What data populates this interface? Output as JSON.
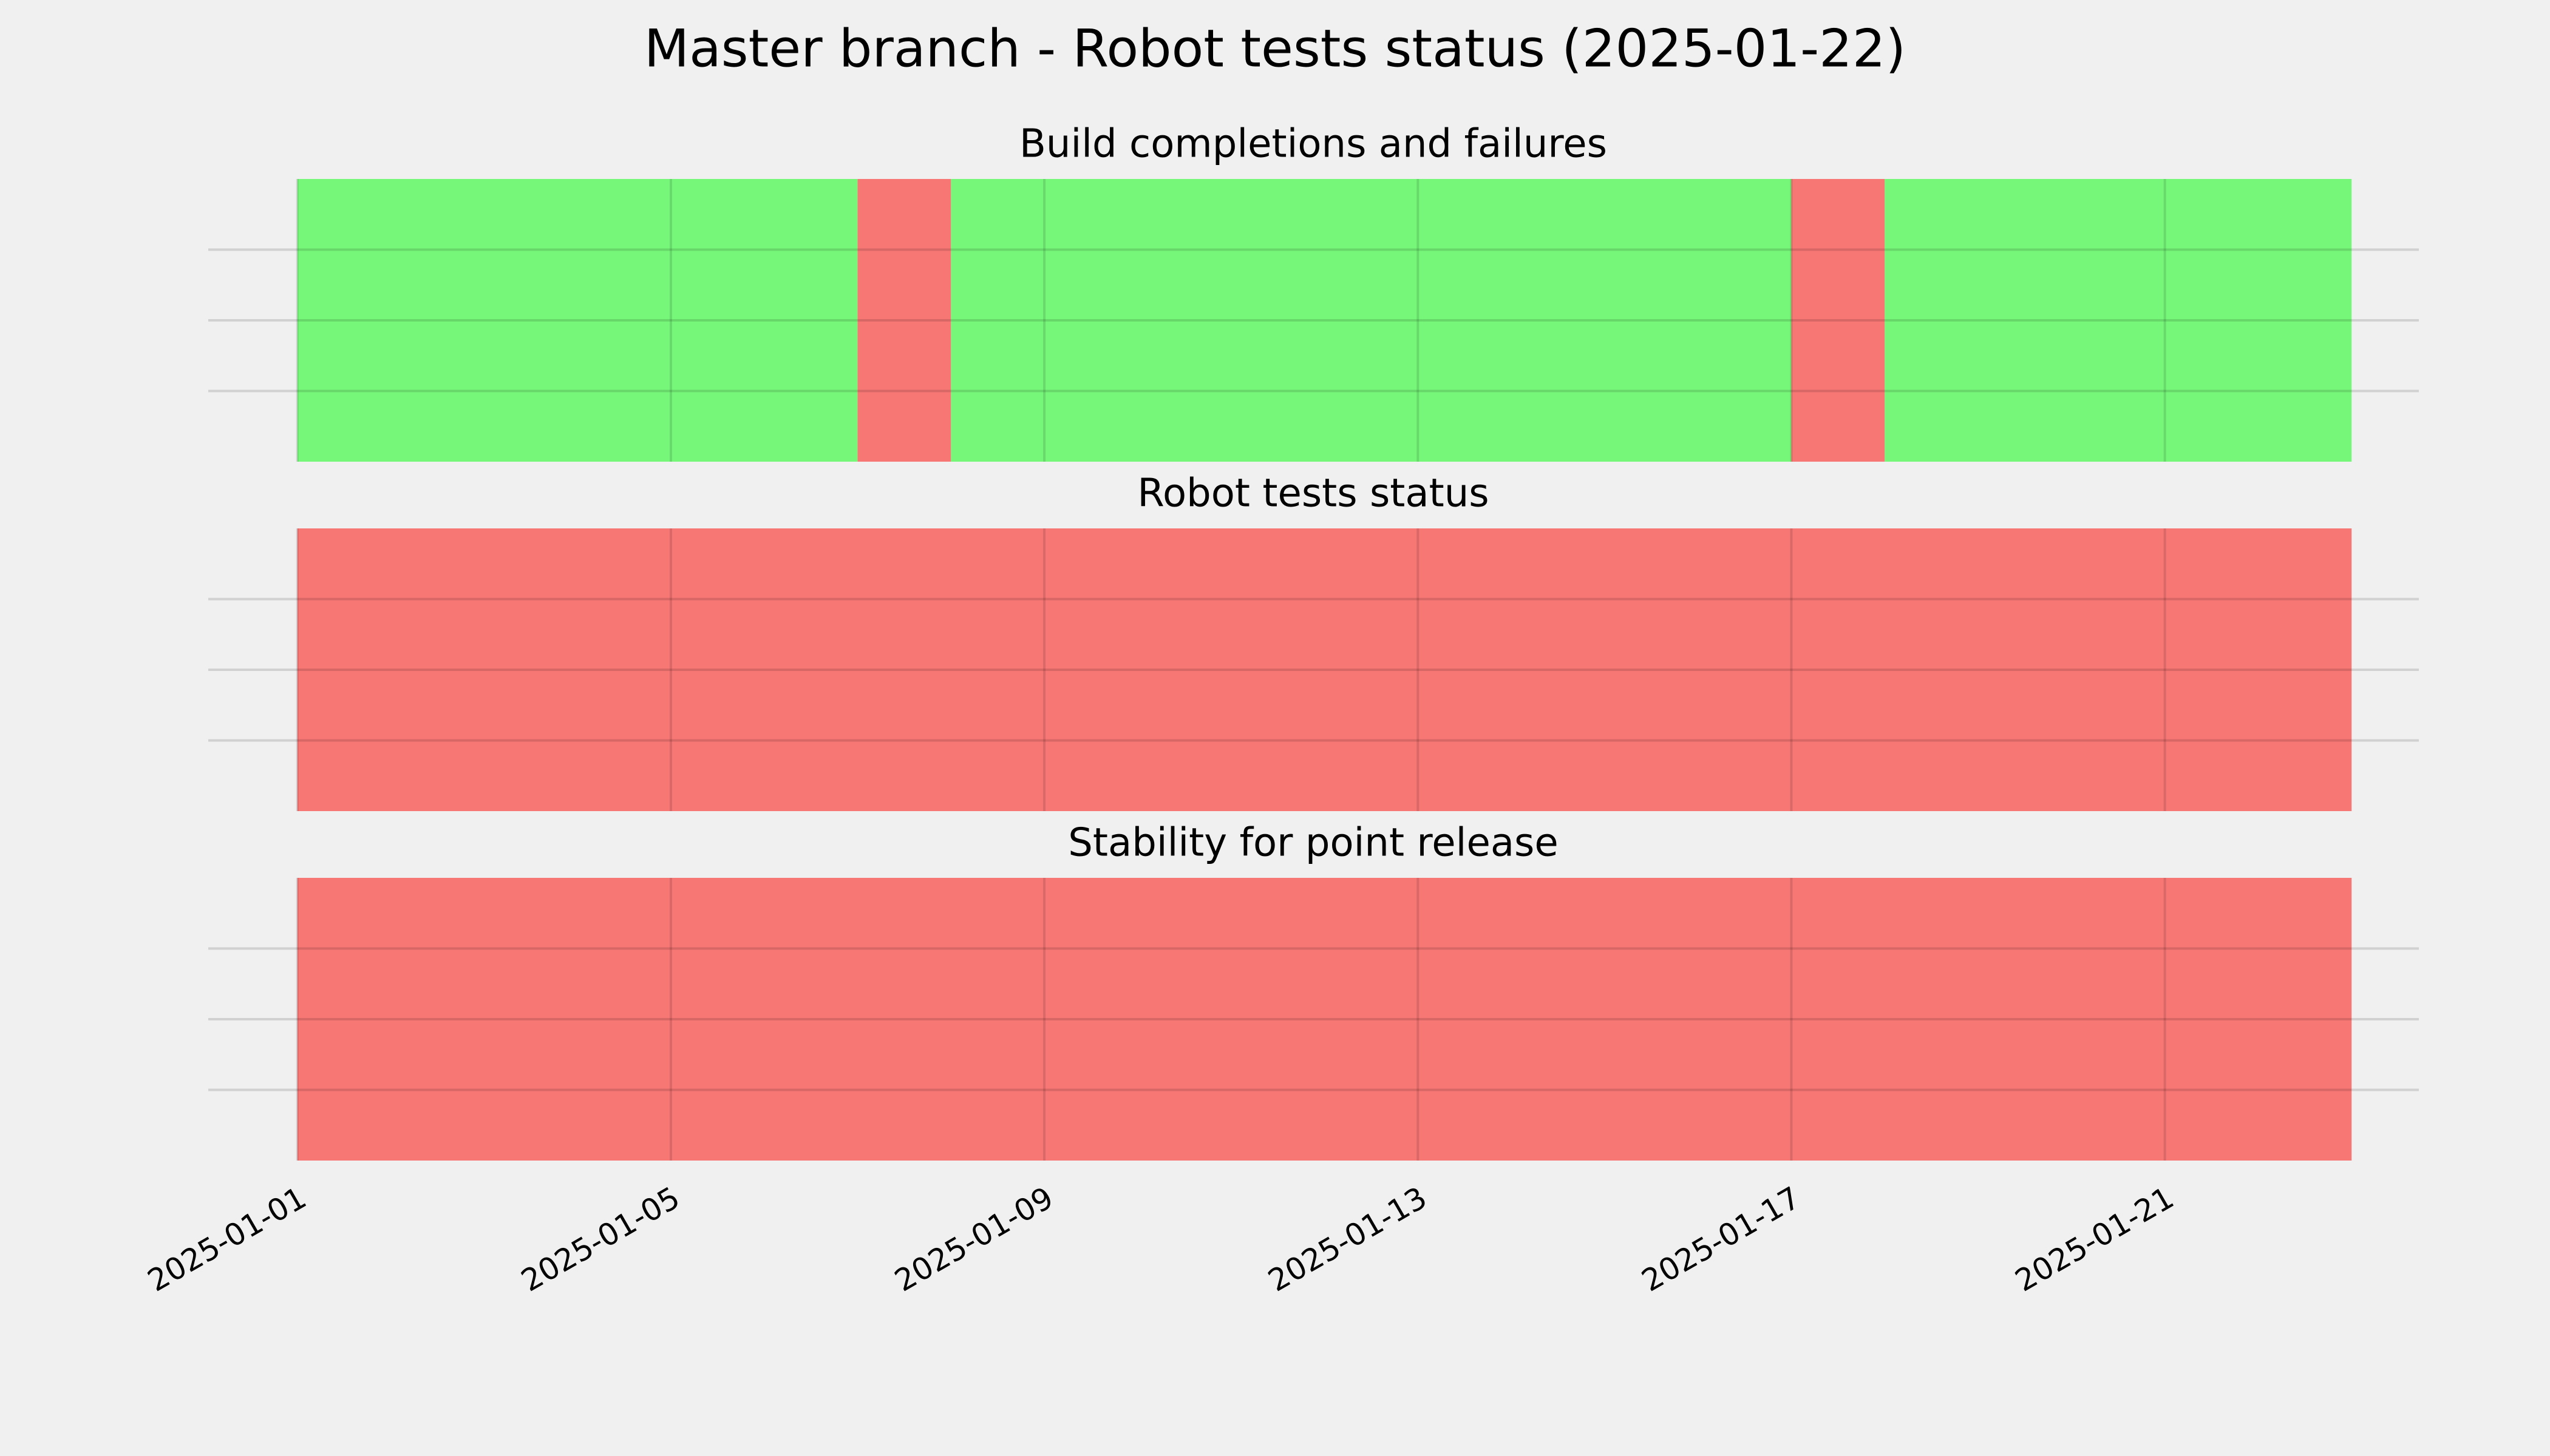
{
  "chart_data": {
    "type": "timeline",
    "title": "Master branch - Robot tests status (2025-01-22)",
    "xlim": [
      "2024-12-31",
      "2025-01-24"
    ],
    "xticks": [
      "2025-01-01",
      "2025-01-05",
      "2025-01-09",
      "2025-01-13",
      "2025-01-17",
      "2025-01-21"
    ],
    "ylim": [
      0,
      1
    ],
    "yticks": [
      0.25,
      0.5,
      0.75
    ],
    "grid": true,
    "panels": [
      {
        "title": "Build completions and failures",
        "spans": [
          {
            "start": "2025-01-01",
            "end": "2025-01-07",
            "color": "#77f77a"
          },
          {
            "start": "2025-01-07",
            "end": "2025-01-08",
            "color": "#f77775"
          },
          {
            "start": "2025-01-08",
            "end": "2025-01-17",
            "color": "#77f77a"
          },
          {
            "start": "2025-01-17",
            "end": "2025-01-18",
            "color": "#f77775"
          },
          {
            "start": "2025-01-18",
            "end": "2025-01-23",
            "color": "#77f77a"
          }
        ]
      },
      {
        "title": "Robot tests status",
        "spans": [
          {
            "start": "2025-01-01",
            "end": "2025-01-23",
            "color": "#f77775"
          }
        ]
      },
      {
        "title": "Stability for point release",
        "spans": [
          {
            "start": "2025-01-01",
            "end": "2025-01-23",
            "color": "#f77775"
          }
        ]
      }
    ]
  }
}
